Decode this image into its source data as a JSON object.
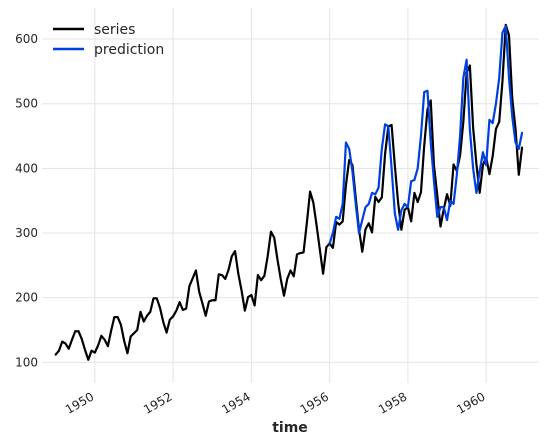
{
  "chart_data": {
    "type": "line",
    "title": "",
    "xlabel": "time",
    "ylabel": "",
    "xlim": [
      1948.65,
      1961.35
    ],
    "ylim": [
      68,
      648
    ],
    "x_ticks": [
      1950,
      1952,
      1954,
      1956,
      1958,
      1960
    ],
    "x_tick_labels": [
      "1950",
      "1952",
      "1954",
      "1956",
      "1958",
      "1960"
    ],
    "y_ticks": [
      100,
      200,
      300,
      400,
      500,
      600
    ],
    "y_tick_labels": [
      "100",
      "200",
      "300",
      "400",
      "500",
      "600"
    ],
    "grid": true,
    "legend_position": "top-left",
    "colors": {
      "series": "#000000",
      "prediction": "#0040e0",
      "grid": "#e3e3e3"
    },
    "series": [
      {
        "name": "series",
        "x_start": 1949.0,
        "x_step": 0.0833333,
        "values": [
          112,
          118,
          132,
          129,
          121,
          135,
          148,
          148,
          136,
          119,
          104,
          118,
          115,
          126,
          141,
          135,
          125,
          149,
          170,
          170,
          158,
          133,
          114,
          140,
          145,
          150,
          178,
          163,
          172,
          178,
          199,
          199,
          184,
          162,
          146,
          166,
          171,
          180,
          193,
          181,
          183,
          218,
          230,
          242,
          209,
          191,
          172,
          194,
          196,
          196,
          236,
          235,
          229,
          243,
          264,
          272,
          237,
          211,
          180,
          201,
          204,
          188,
          235,
          227,
          234,
          264,
          302,
          293,
          259,
          229,
          203,
          229,
          242,
          233,
          267,
          269,
          270,
          315,
          364,
          347,
          312,
          274,
          237,
          278,
          284,
          277,
          317,
          313,
          318,
          374,
          413,
          405,
          355,
          306,
          271,
          306,
          315,
          301,
          356,
          348,
          355,
          422,
          465,
          467,
          404,
          347,
          305,
          336,
          340,
          318,
          362,
          348,
          363,
          435,
          491,
          505,
          404,
          359,
          310,
          337,
          360,
          342,
          406,
          396,
          420,
          472,
          548,
          559,
          463,
          407,
          362,
          405,
          417,
          391,
          419,
          461,
          472,
          535,
          622,
          606,
          508,
          461,
          390,
          432
        ]
      },
      {
        "name": "prediction",
        "x_start": 1956.0,
        "x_step": 0.0833333,
        "values": [
          284,
          300,
          325,
          322,
          345,
          440,
          430,
          395,
          345,
          300,
          320,
          340,
          345,
          362,
          360,
          370,
          430,
          468,
          465,
          400,
          330,
          305,
          335,
          345,
          340,
          380,
          382,
          400,
          450,
          518,
          520,
          440,
          380,
          325,
          340,
          340,
          320,
          350,
          345,
          390,
          450,
          540,
          568,
          460,
          400,
          362,
          395,
          425,
          405,
          475,
          470,
          500,
          540,
          610,
          620,
          540,
          480,
          440,
          430,
          455
        ]
      }
    ]
  }
}
